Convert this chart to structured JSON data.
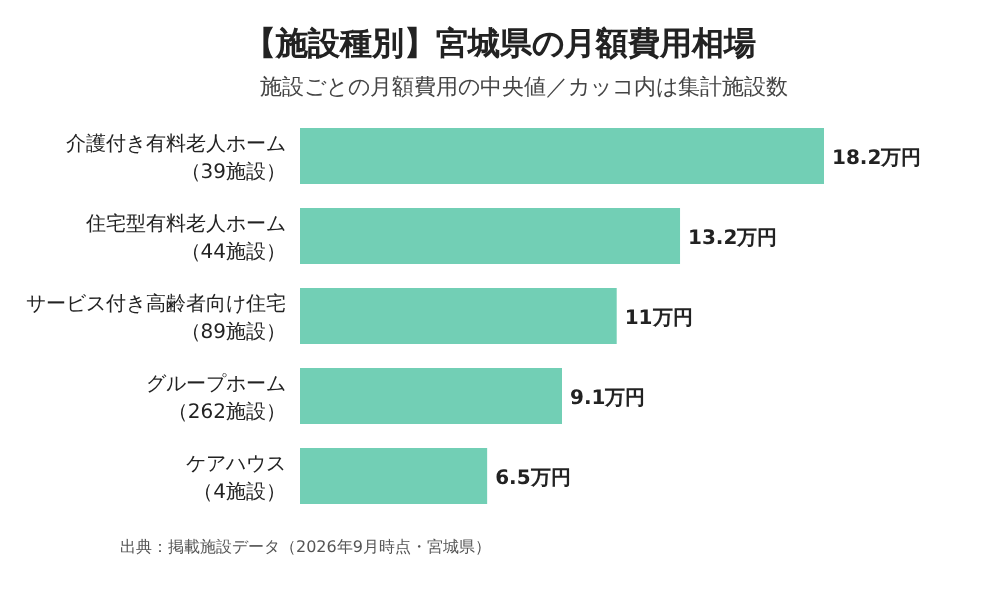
{
  "chart_data": {
    "type": "bar",
    "orientation": "horizontal",
    "title": "【施設種別】宮城県の月額費用相場",
    "subtitle": "施設ごとの月額費用の中央値／カッコ内は集計施設数",
    "categories": [
      "介護付き有料老人ホーム（39施設）",
      "住宅型有料老人ホーム（44施設）",
      "サービス付き高齢者向け住宅（89施設）",
      "グループホーム（262施設）",
      "ケアハウス（4施設）"
    ],
    "values": [
      18.2,
      13.2,
      11,
      9.1,
      6.5
    ],
    "value_labels": [
      "18.2万円",
      "13.2万円",
      "11万円",
      "9.1万円",
      "6.5万円"
    ],
    "color": "#72cfb5",
    "annotations": [
      "出典：掲載施設データ（2026年9月時点・宮城県）"
    ]
  }
}
